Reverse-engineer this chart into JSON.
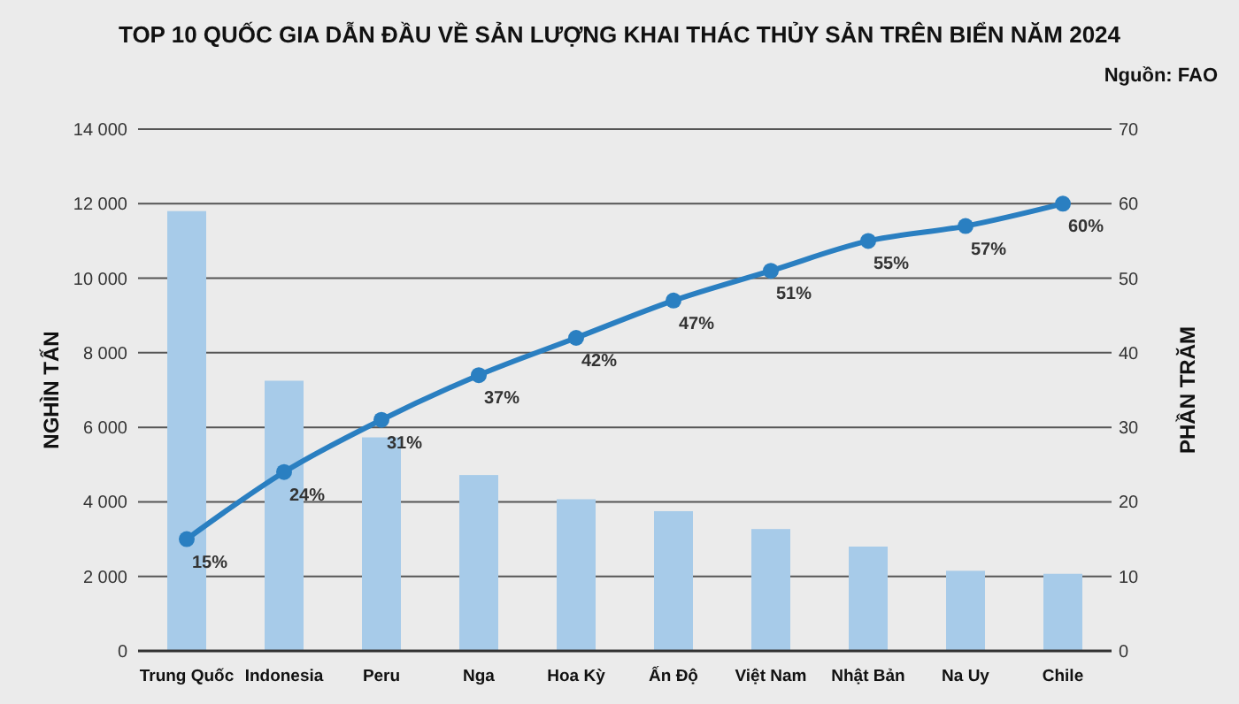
{
  "chart_data": {
    "type": "bar",
    "title": "TOP 10 QUỐC GIA DẪN ĐẦU VỀ SẢN LƯỢNG KHAI THÁC THỦY SẢN TRÊN BIỂN NĂM 2024",
    "annotations": [
      "Nguồn: FAO"
    ],
    "ylabel": "NGHÌN TẤN",
    "y2label": "PHẦN TRĂM",
    "categories": [
      "Trung Quốc",
      "Indonesia",
      "Peru",
      "Nga",
      "Hoa Kỳ",
      "Ấn Độ",
      "Việt Nam",
      "Nhật Bản",
      "Na Uy",
      "Chile"
    ],
    "series": [
      {
        "color": "#a7cbe9",
        "values": [
          11800,
          7250,
          5730,
          4720,
          4070,
          3750,
          3270,
          2800,
          2150,
          2070
        ]
      },
      {
        "type": "line",
        "axis": "y2",
        "color": "#2a7fc1",
        "marker": "circle",
        "values": [
          15,
          24,
          31,
          37,
          42,
          47,
          51,
          55,
          57,
          60
        ],
        "value_labels": [
          "15%",
          "24%",
          "31%",
          "37%",
          "42%",
          "47%",
          "51%",
          "55%",
          "57%",
          "60%"
        ]
      }
    ],
    "ylim": [
      0,
      14000
    ],
    "yticks": [
      0,
      {
        "value": 2000,
        "label": "2 000"
      },
      {
        "value": 4000,
        "label": "4 000"
      },
      {
        "value": 6000,
        "label": "6 000"
      },
      {
        "value": 8000,
        "label": "8 000"
      },
      {
        "value": 10000,
        "label": "10 000"
      },
      {
        "value": 12000,
        "label": "12 000"
      },
      {
        "value": 14000,
        "label": "14 000"
      }
    ],
    "y2lim": [
      0,
      70
    ],
    "y2ticks": [
      0,
      10,
      20,
      30,
      40,
      50,
      60,
      70
    ],
    "grid": "y"
  }
}
